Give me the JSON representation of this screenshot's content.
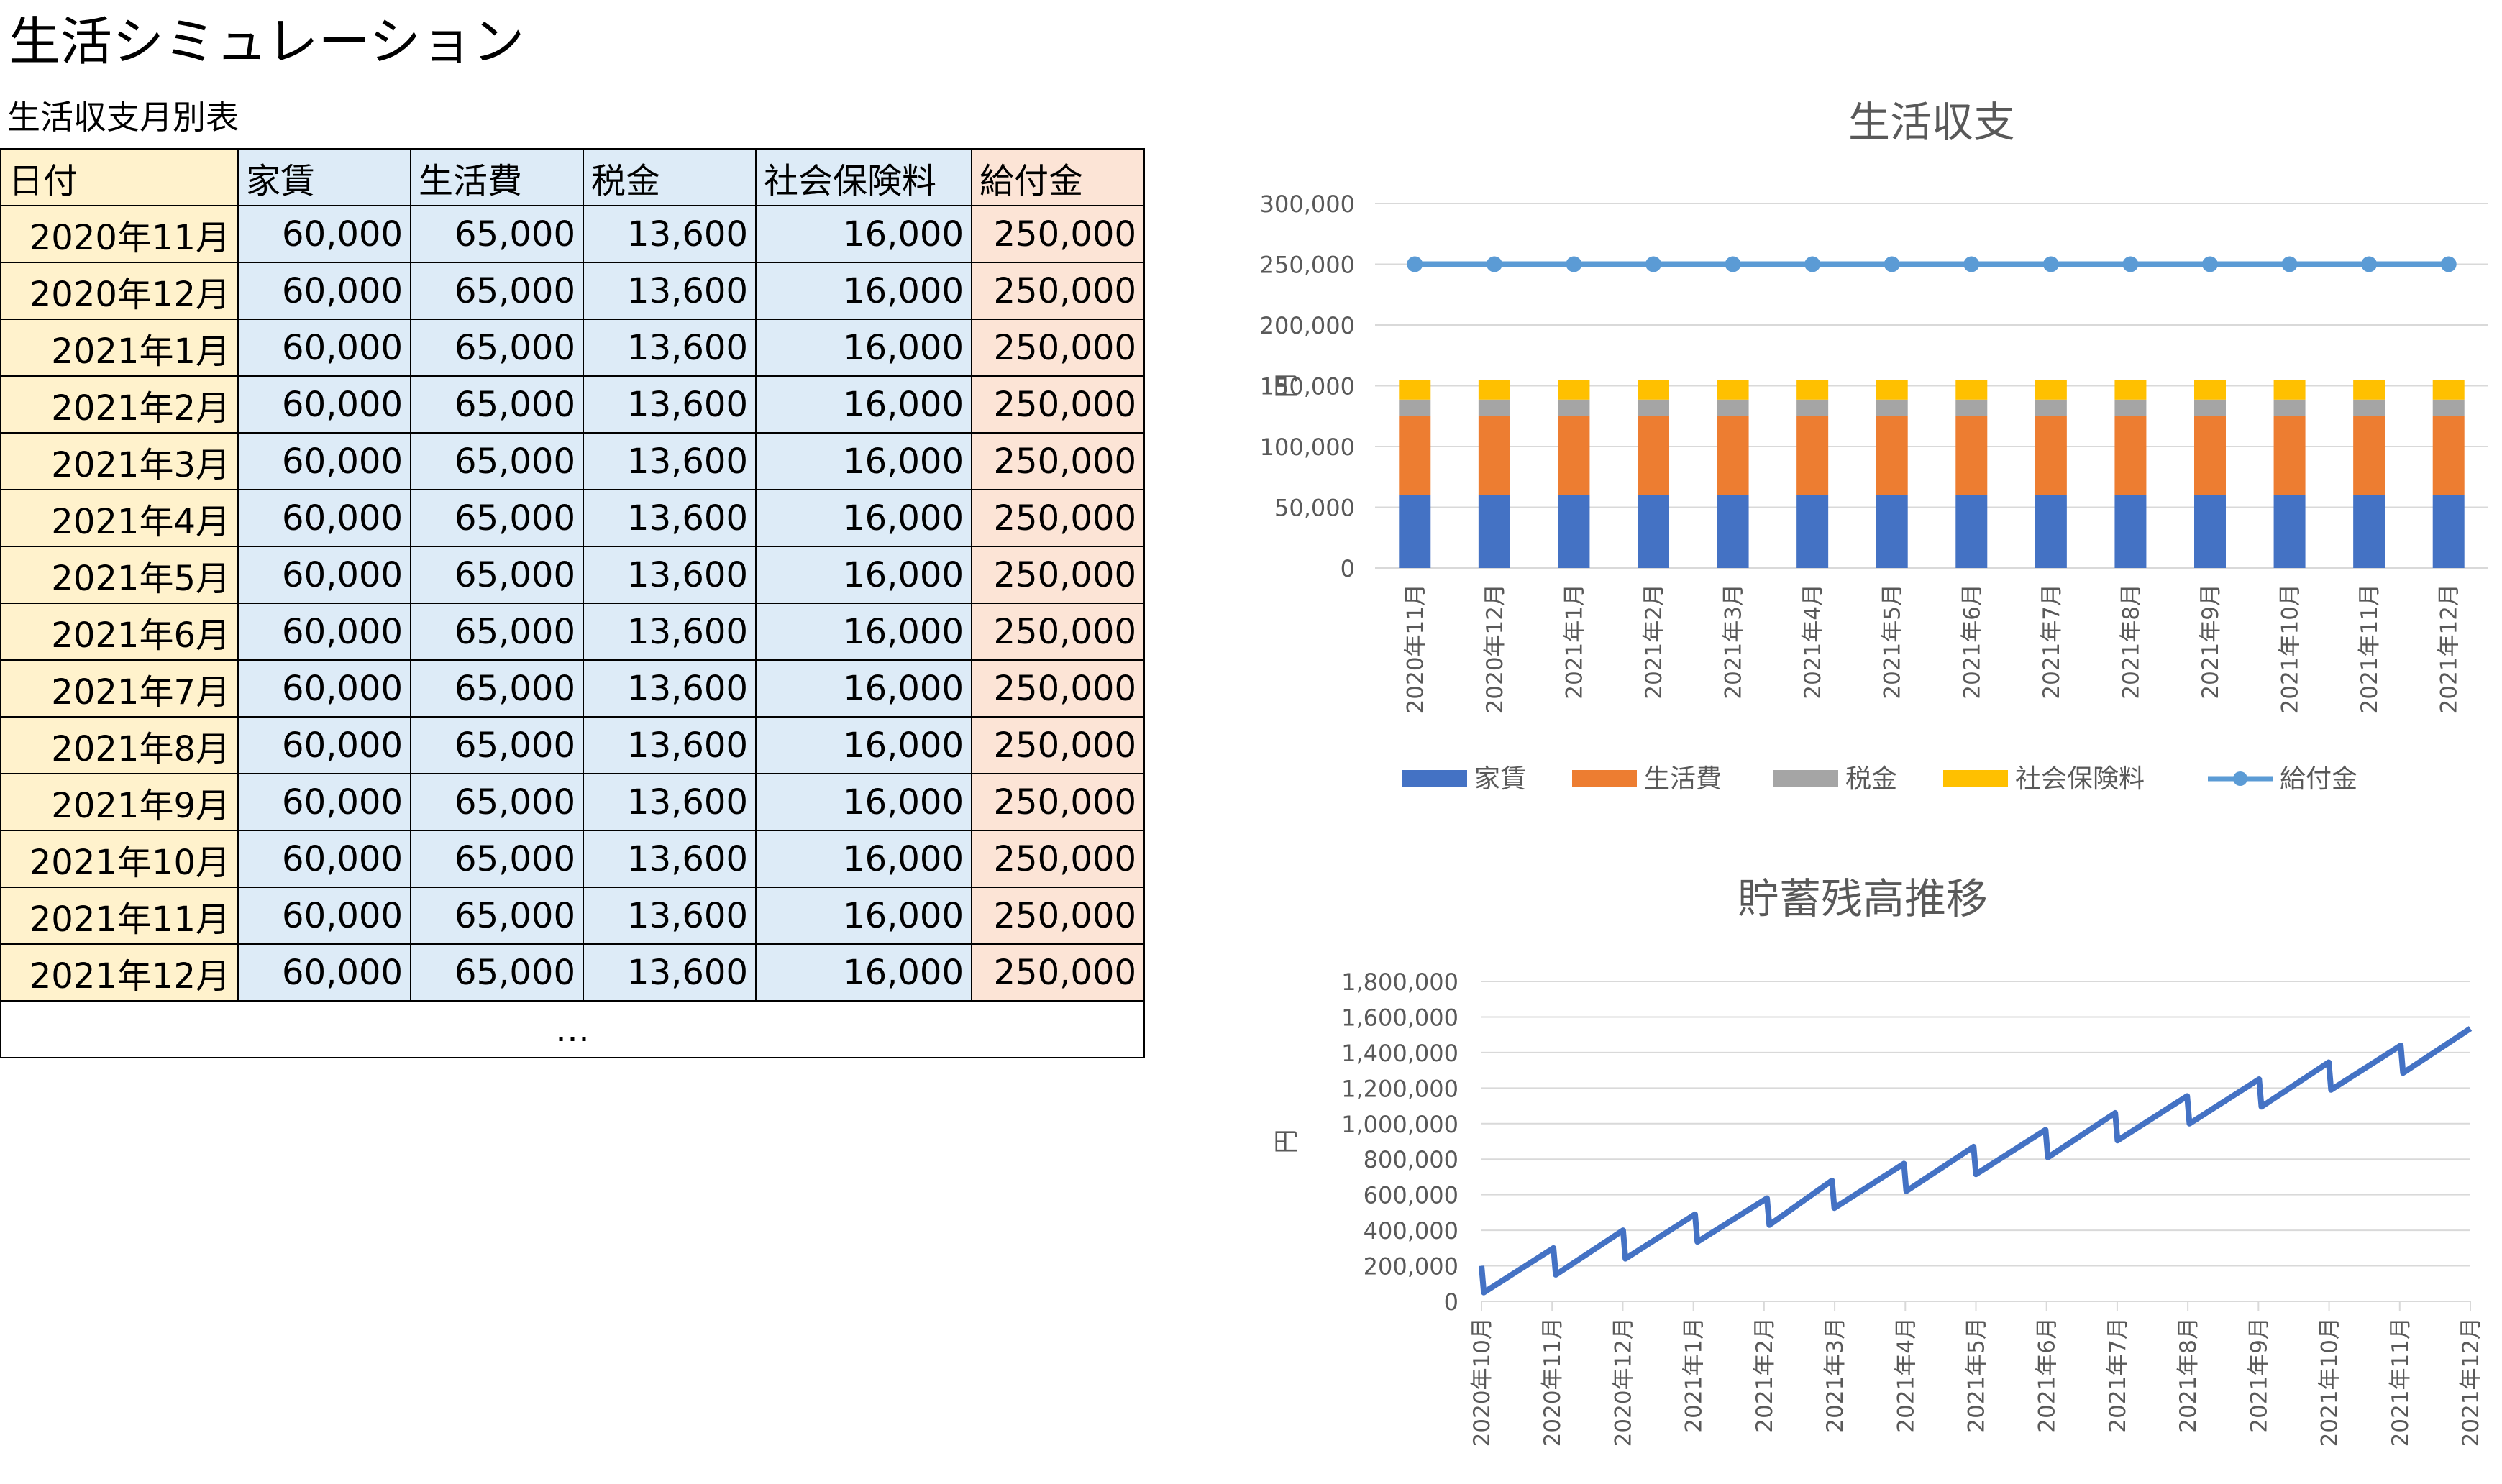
{
  "title": "生活シミュレーション",
  "table": {
    "caption": "生活収支月別表",
    "headers": [
      "日付",
      "家賃",
      "生活費",
      "税金",
      "社会保険料",
      "給付金"
    ],
    "rows": [
      [
        "2020年11月",
        "60,000",
        "65,000",
        "13,600",
        "16,000",
        "250,000"
      ],
      [
        "2020年12月",
        "60,000",
        "65,000",
        "13,600",
        "16,000",
        "250,000"
      ],
      [
        "2021年1月",
        "60,000",
        "65,000",
        "13,600",
        "16,000",
        "250,000"
      ],
      [
        "2021年2月",
        "60,000",
        "65,000",
        "13,600",
        "16,000",
        "250,000"
      ],
      [
        "2021年3月",
        "60,000",
        "65,000",
        "13,600",
        "16,000",
        "250,000"
      ],
      [
        "2021年4月",
        "60,000",
        "65,000",
        "13,600",
        "16,000",
        "250,000"
      ],
      [
        "2021年5月",
        "60,000",
        "65,000",
        "13,600",
        "16,000",
        "250,000"
      ],
      [
        "2021年6月",
        "60,000",
        "65,000",
        "13,600",
        "16,000",
        "250,000"
      ],
      [
        "2021年7月",
        "60,000",
        "65,000",
        "13,600",
        "16,000",
        "250,000"
      ],
      [
        "2021年8月",
        "60,000",
        "65,000",
        "13,600",
        "16,000",
        "250,000"
      ],
      [
        "2021年9月",
        "60,000",
        "65,000",
        "13,600",
        "16,000",
        "250,000"
      ],
      [
        "2021年10月",
        "60,000",
        "65,000",
        "13,600",
        "16,000",
        "250,000"
      ],
      [
        "2021年11月",
        "60,000",
        "65,000",
        "13,600",
        "16,000",
        "250,000"
      ],
      [
        "2021年12月",
        "60,000",
        "65,000",
        "13,600",
        "16,000",
        "250,000"
      ]
    ],
    "ellipsis": "…"
  },
  "colors": {
    "rent": "#4472C4",
    "living": "#ED7D31",
    "tax": "#A5A5A5",
    "insurance": "#FFC000",
    "benefit": "#5B9BD5",
    "savings": "#4472C4",
    "gridline": "#D9D9D9",
    "axis_text": "#595959"
  },
  "chart_data": [
    {
      "type": "bar",
      "stacked": true,
      "title": "生活収支",
      "ylabel": "円",
      "ylim": [
        0,
        300000
      ],
      "yticks": [
        "0",
        "50,000",
        "100,000",
        "150,000",
        "200,000",
        "250,000",
        "300,000"
      ],
      "grid": true,
      "legend_position": "bottom",
      "categories": [
        "2020年11月",
        "2020年12月",
        "2021年1月",
        "2021年2月",
        "2021年3月",
        "2021年4月",
        "2021年5月",
        "2021年6月",
        "2021年7月",
        "2021年8月",
        "2021年9月",
        "2021年10月",
        "2021年11月",
        "2021年12月"
      ],
      "series": [
        {
          "name": "家賃",
          "kind": "bar",
          "values": [
            60000,
            60000,
            60000,
            60000,
            60000,
            60000,
            60000,
            60000,
            60000,
            60000,
            60000,
            60000,
            60000,
            60000
          ]
        },
        {
          "name": "生活費",
          "kind": "bar",
          "values": [
            65000,
            65000,
            65000,
            65000,
            65000,
            65000,
            65000,
            65000,
            65000,
            65000,
            65000,
            65000,
            65000,
            65000
          ]
        },
        {
          "name": "税金",
          "kind": "bar",
          "values": [
            13600,
            13600,
            13600,
            13600,
            13600,
            13600,
            13600,
            13600,
            13600,
            13600,
            13600,
            13600,
            13600,
            13600
          ]
        },
        {
          "name": "社会保険料",
          "kind": "bar",
          "values": [
            16000,
            16000,
            16000,
            16000,
            16000,
            16000,
            16000,
            16000,
            16000,
            16000,
            16000,
            16000,
            16000,
            16000
          ]
        },
        {
          "name": "給付金",
          "kind": "line",
          "values": [
            250000,
            250000,
            250000,
            250000,
            250000,
            250000,
            250000,
            250000,
            250000,
            250000,
            250000,
            250000,
            250000,
            250000
          ]
        }
      ]
    },
    {
      "type": "line",
      "title": "貯蓄残高推移",
      "ylabel": "円",
      "ylim": [
        0,
        1800000
      ],
      "yticks": [
        "0",
        "200,000",
        "400,000",
        "600,000",
        "800,000",
        "1,000,000",
        "1,200,000",
        "1,400,000",
        "1,600,000",
        "1,800,000"
      ],
      "grid": true,
      "xlim": [
        "2020-10-01",
        "2021-12-01"
      ],
      "xticks": [
        "2020年10月",
        "2020年11月",
        "2020年12月",
        "2021年1月",
        "2021年2月",
        "2021年3月",
        "2021年4月",
        "2021年5月",
        "2021年6月",
        "2021年7月",
        "2021年8月",
        "2021年9月",
        "2021年10月",
        "2021年11月",
        "2021年12月"
      ],
      "series": [
        {
          "name": "",
          "points": [
            [
              "2020-10-01",
              200000
            ],
            [
              "2020-10-02",
              50000
            ],
            [
              "2020-11-01",
              300000
            ],
            [
              "2020-11-02",
              150000
            ],
            [
              "2020-12-01",
              400000
            ],
            [
              "2020-12-02",
              240000
            ],
            [
              "2021-01-01",
              490000
            ],
            [
              "2021-01-02",
              335000
            ],
            [
              "2021-02-01",
              580000
            ],
            [
              "2021-02-02",
              430000
            ],
            [
              "2021-03-01",
              680000
            ],
            [
              "2021-03-02",
              525000
            ],
            [
              "2021-04-01",
              775000
            ],
            [
              "2021-04-02",
              620000
            ],
            [
              "2021-05-01",
              870000
            ],
            [
              "2021-05-02",
              715000
            ],
            [
              "2021-06-01",
              965000
            ],
            [
              "2021-06-02",
              810000
            ],
            [
              "2021-07-01",
              1060000
            ],
            [
              "2021-07-02",
              905000
            ],
            [
              "2021-08-01",
              1155000
            ],
            [
              "2021-08-02",
              1000000
            ],
            [
              "2021-09-01",
              1250000
            ],
            [
              "2021-09-02",
              1095000
            ],
            [
              "2021-10-01",
              1345000
            ],
            [
              "2021-10-02",
              1190000
            ],
            [
              "2021-11-01",
              1440000
            ],
            [
              "2021-11-02",
              1285000
            ],
            [
              "2021-12-01",
              1535000
            ]
          ]
        }
      ]
    }
  ]
}
